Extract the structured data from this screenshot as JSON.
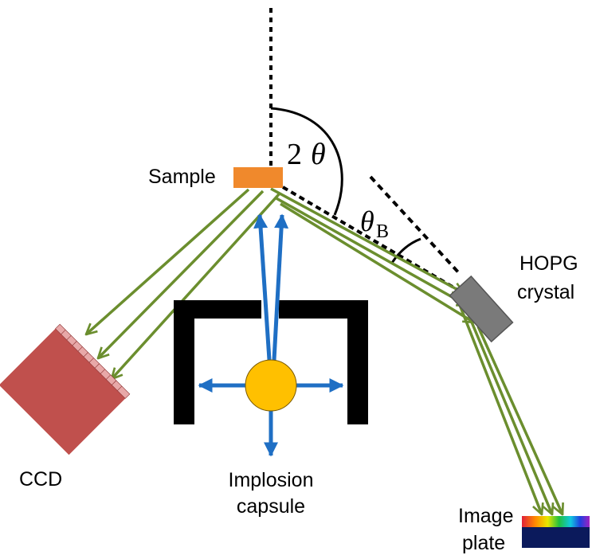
{
  "labels": {
    "sample": "Sample",
    "two_theta_num": "2",
    "two_theta_sym": "θ",
    "theta_b_sym": "θ",
    "theta_b_sub": "B",
    "hopg_line1": "HOPG",
    "hopg_line2": "crystal",
    "ccd": "CCD",
    "capsule_line1": "Implosion",
    "capsule_line2": "capsule",
    "image_plate_line1": "Image",
    "image_plate_line2": "plate"
  },
  "colors": {
    "sample": "#f0892c",
    "ccd_body": "#c0504d",
    "ccd_pixels": "#e8a8a8",
    "hopg": "#7a7a7a",
    "capsule": "#ffc000",
    "capsule_arrows": "#1f6fc4",
    "xray_beams": "#6b8e2e",
    "shield": "#000000",
    "image_plate_dark": "#0b1a5c"
  }
}
